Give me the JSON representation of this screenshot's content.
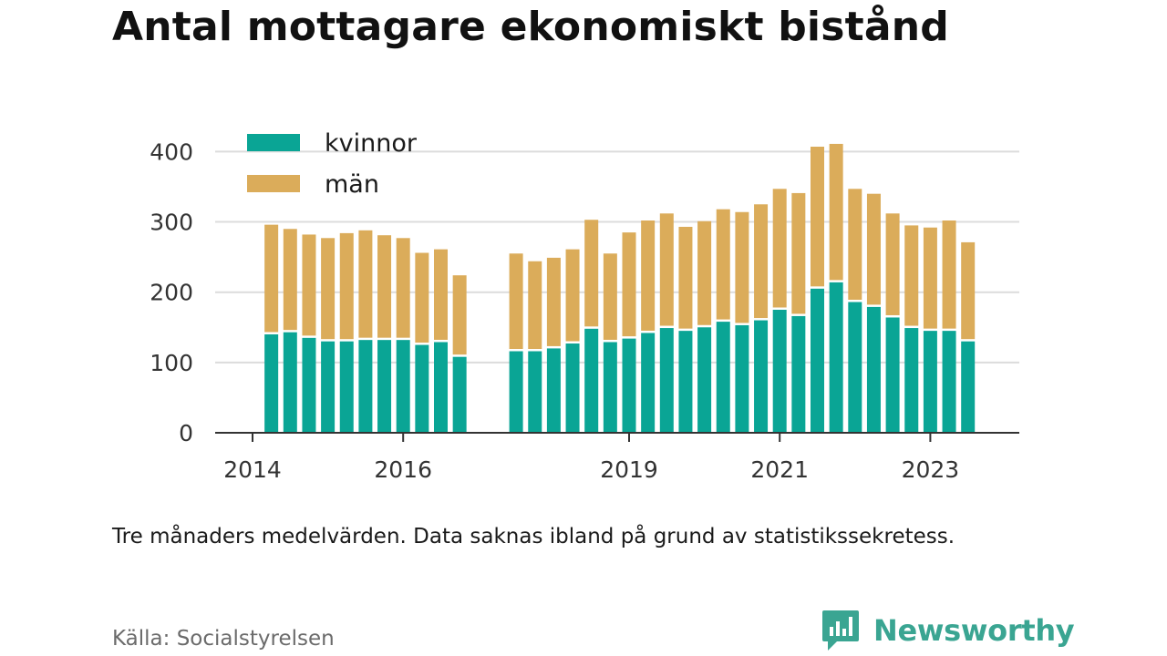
{
  "title": "Antal mottagare ekonomiskt bistånd",
  "note": "Tre månaders medelvärden. Data saknas ibland på grund av statistikssekretess.",
  "source": "Källa: Socialstyrelsen",
  "brand": {
    "name": "Newsworthy",
    "icon": "newsworthy-logo-icon",
    "color": "#3aa592"
  },
  "chart_data": {
    "type": "bar",
    "stacked": true,
    "x_ticks": [
      "2014",
      "2016",
      "2019",
      "2021",
      "2023"
    ],
    "y_ticks": [
      "0",
      "100",
      "200",
      "300",
      "400"
    ],
    "ylim": [
      0,
      420
    ],
    "grid": true,
    "legend_position": "top-left",
    "colors": {
      "kvinnor": "#0aa595",
      "män": "#dbac5a"
    },
    "series": [
      {
        "name": "kvinnor",
        "values": [
          140,
          143,
          135,
          130,
          130,
          132,
          132,
          132,
          125,
          129,
          108,
          116,
          116,
          120,
          127,
          148,
          129,
          134,
          142,
          149,
          145,
          150,
          158,
          153,
          160,
          175,
          166,
          205,
          214,
          186,
          179,
          164,
          149,
          145,
          145,
          130
        ]
      },
      {
        "name": "män",
        "values": [
          156,
          147,
          147,
          147,
          154,
          156,
          149,
          145,
          131,
          132,
          116,
          139,
          128,
          129,
          134,
          155,
          126,
          151,
          160,
          163,
          148,
          151,
          160,
          161,
          165,
          172,
          175,
          202,
          197,
          161,
          161,
          148,
          146,
          147,
          157,
          141
        ]
      }
    ],
    "segments": [
      {
        "start": "2014-04",
        "count": 11
      },
      {
        "start": "2017-07",
        "count": 25
      }
    ]
  }
}
